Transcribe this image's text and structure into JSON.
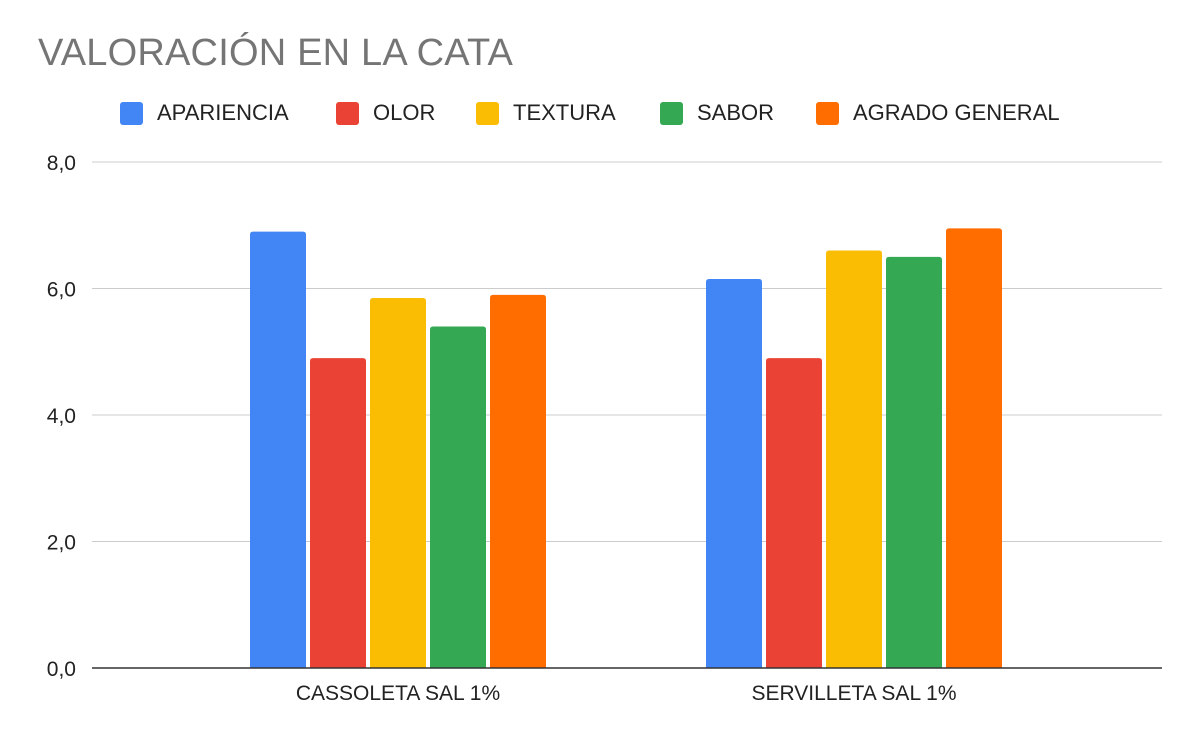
{
  "chart_data": {
    "type": "bar",
    "title": "VALORACIÓN EN LA CATA",
    "xlabel": "",
    "ylabel": "",
    "categories": [
      "CASSOLETA SAL 1%",
      "SERVILLETA SAL 1%"
    ],
    "series": [
      {
        "name": "APARIENCIA",
        "color": "#4285F4",
        "values": [
          6.9,
          6.15
        ]
      },
      {
        "name": "OLOR",
        "color": "#EA4335",
        "values": [
          4.9,
          4.9
        ]
      },
      {
        "name": "TEXTURA",
        "color": "#FBBC04",
        "values": [
          5.85,
          6.6
        ]
      },
      {
        "name": "SABOR",
        "color": "#34A853",
        "values": [
          5.4,
          6.5
        ]
      },
      {
        "name": "AGRADO GENERAL",
        "color": "#FF6D01",
        "values": [
          5.9,
          6.95
        ]
      }
    ],
    "ylim": [
      0,
      8
    ],
    "yticks": [
      "0,0",
      "2,0",
      "4,0",
      "6,0",
      "8,0"
    ],
    "ytick_values": [
      0,
      2,
      4,
      6,
      8
    ],
    "grid": true,
    "legend_position": "top"
  }
}
